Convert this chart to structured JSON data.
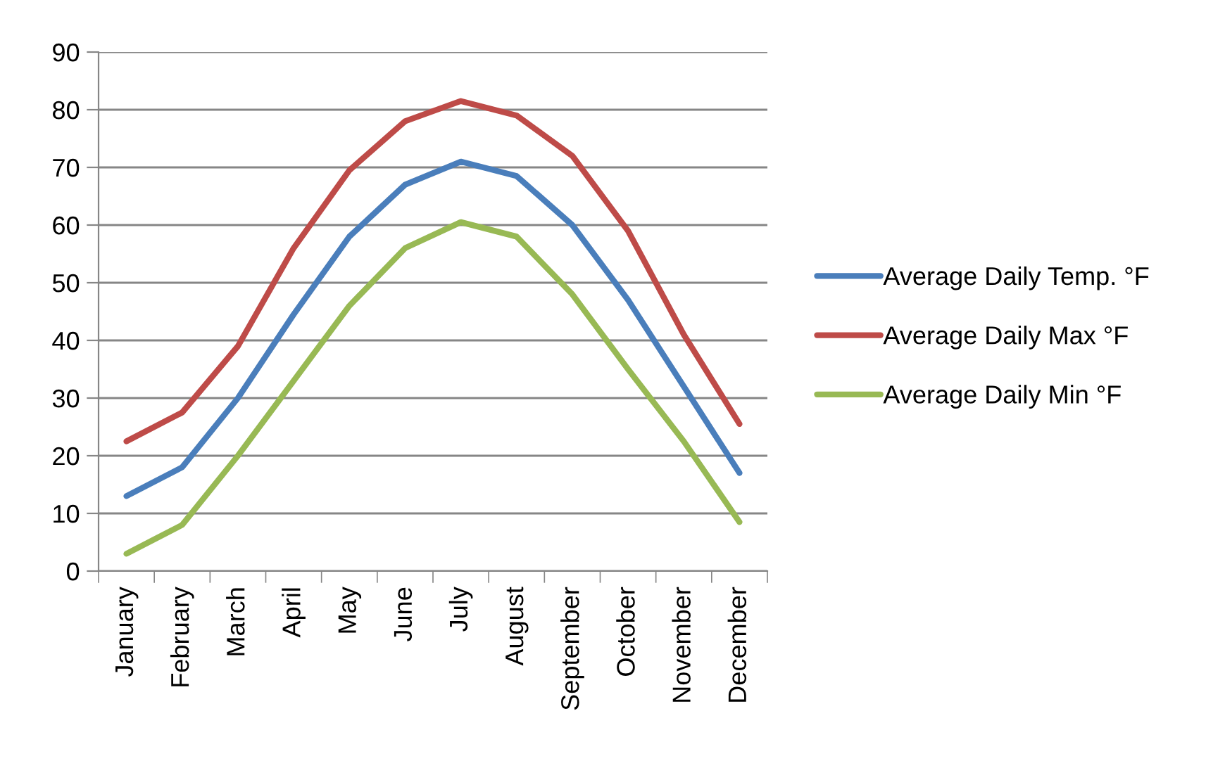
{
  "chart_data": {
    "type": "line",
    "categories": [
      "January",
      "February",
      "March",
      "April",
      "May",
      "June",
      "July",
      "August",
      "September",
      "October",
      "November",
      "December"
    ],
    "series": [
      {
        "name": "Average Daily Temp. °F",
        "color": "#4a7ebb",
        "values": [
          13,
          18,
          30,
          44.5,
          58,
          67,
          71,
          68.5,
          60,
          47,
          32,
          17
        ]
      },
      {
        "name": "Average Daily Max °F",
        "color": "#be4b48",
        "values": [
          22.5,
          27.5,
          39,
          56,
          69.5,
          78,
          81.5,
          79,
          72,
          59,
          41,
          25.5
        ]
      },
      {
        "name": "Average Daily Min °F",
        "color": "#98b954",
        "values": [
          3,
          8,
          20,
          33,
          46,
          56,
          60.5,
          58,
          48,
          35,
          22.5,
          8.5
        ]
      }
    ],
    "ylim": [
      0,
      90
    ],
    "yticks": [
      0,
      10,
      20,
      30,
      40,
      50,
      60,
      70,
      80,
      90
    ],
    "grid": "y",
    "legend": "right",
    "marker": "none",
    "line_style": "solid"
  }
}
